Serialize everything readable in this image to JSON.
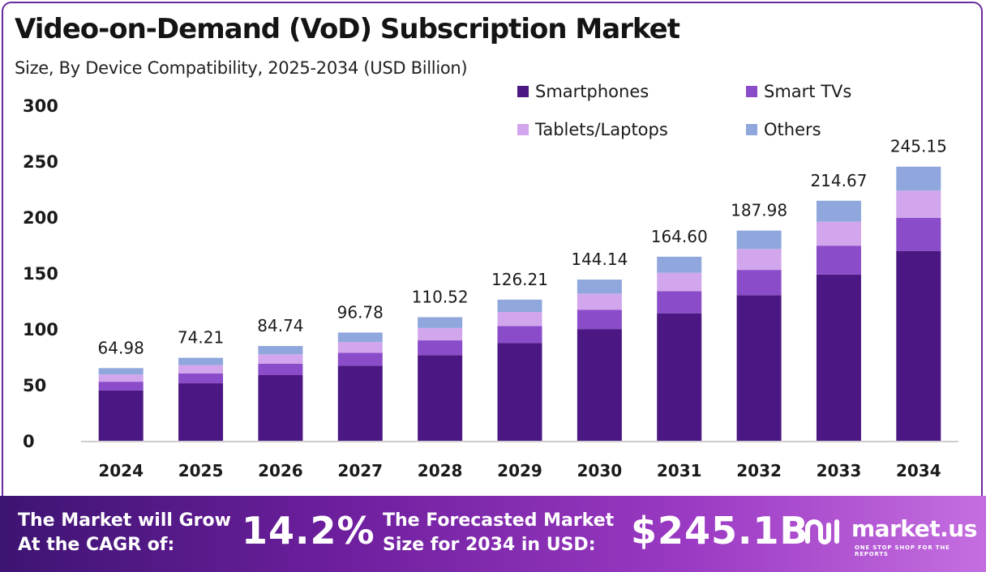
{
  "header": {
    "title": "Video-on-Demand (VoD) Subscription Market",
    "subtitle": "Size, By Device Compatibility, 2025-2034 (USD Billion)"
  },
  "chart_data": {
    "type": "bar",
    "stacked": true,
    "title": "Video-on-Demand (VoD) Subscription Market",
    "subtitle": "Size, By Device Compatibility, 2025-2034 (USD Billion)",
    "xlabel": "",
    "ylabel": "",
    "ylim": [
      0,
      300
    ],
    "yticks": [
      0,
      50,
      100,
      150,
      200,
      250,
      300
    ],
    "grid": false,
    "legend_position": "top-right",
    "categories": [
      "2024",
      "2025",
      "2026",
      "2027",
      "2028",
      "2029",
      "2030",
      "2031",
      "2032",
      "2033",
      "2034"
    ],
    "totals": [
      "64.98",
      "74.21",
      "84.74",
      "96.78",
      "110.52",
      "126.21",
      "144.14",
      "164.60",
      "187.98",
      "214.67",
      "245.15"
    ],
    "series": [
      {
        "name": "Smartphones",
        "color": "#4b1782",
        "values": [
          45.0,
          51.4,
          58.7,
          67.1,
          76.6,
          87.5,
          99.9,
          114.0,
          130.2,
          148.7,
          169.8
        ]
      },
      {
        "name": "Smart TVs",
        "color": "#8a4cc9",
        "values": [
          7.8,
          8.9,
          10.2,
          11.6,
          13.2,
          15.1,
          17.3,
          19.8,
          22.6,
          25.8,
          29.5
        ]
      },
      {
        "name": "Tablets/Laptops",
        "color": "#d2a6ec",
        "values": [
          6.5,
          7.4,
          8.4,
          9.6,
          11.0,
          12.6,
          14.4,
          16.4,
          18.7,
          21.4,
          24.4
        ]
      },
      {
        "name": "Others",
        "color": "#8fa7dc",
        "values": [
          5.68,
          6.51,
          7.44,
          8.48,
          9.72,
          11.01,
          12.54,
          14.4,
          16.48,
          18.77,
          21.45
        ]
      }
    ]
  },
  "footer": {
    "cagr_label_line1": "The Market will Grow",
    "cagr_label_line2": "At the CAGR of:",
    "cagr_value": "14.2%",
    "forecast_label_line1": "The Forecasted Market",
    "forecast_label_line2": "Size for 2034 in USD:",
    "forecast_value": "$245.1B",
    "logo_name": "market.us",
    "logo_tagline": "ONE STOP SHOP FOR THE REPORTS"
  }
}
